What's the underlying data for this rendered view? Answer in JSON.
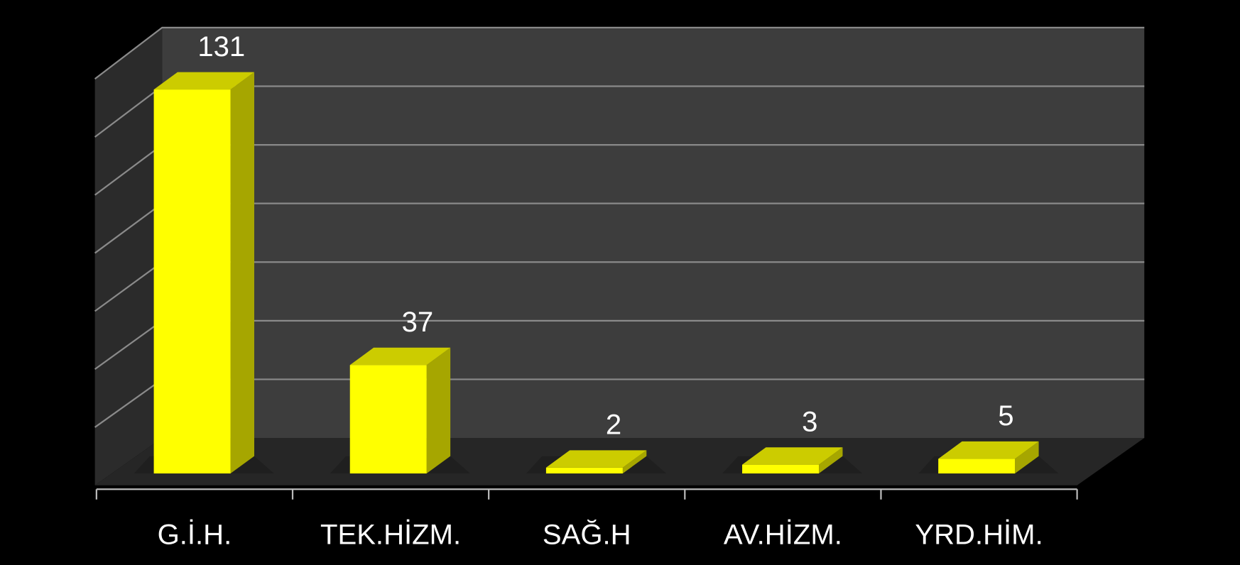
{
  "chart_data": {
    "type": "bar3d",
    "categories": [
      "G.İ.H.",
      "TEK.HİZM.",
      "SAĞ.H",
      "AV.HİZM.",
      "YRD.HİM."
    ],
    "values": [
      131,
      37,
      2,
      3,
      5
    ],
    "color": "#ffff00",
    "ylim": [
      0,
      140
    ],
    "yticks": [
      0,
      20,
      40,
      60,
      80,
      100,
      120,
      140
    ],
    "grid": true
  }
}
